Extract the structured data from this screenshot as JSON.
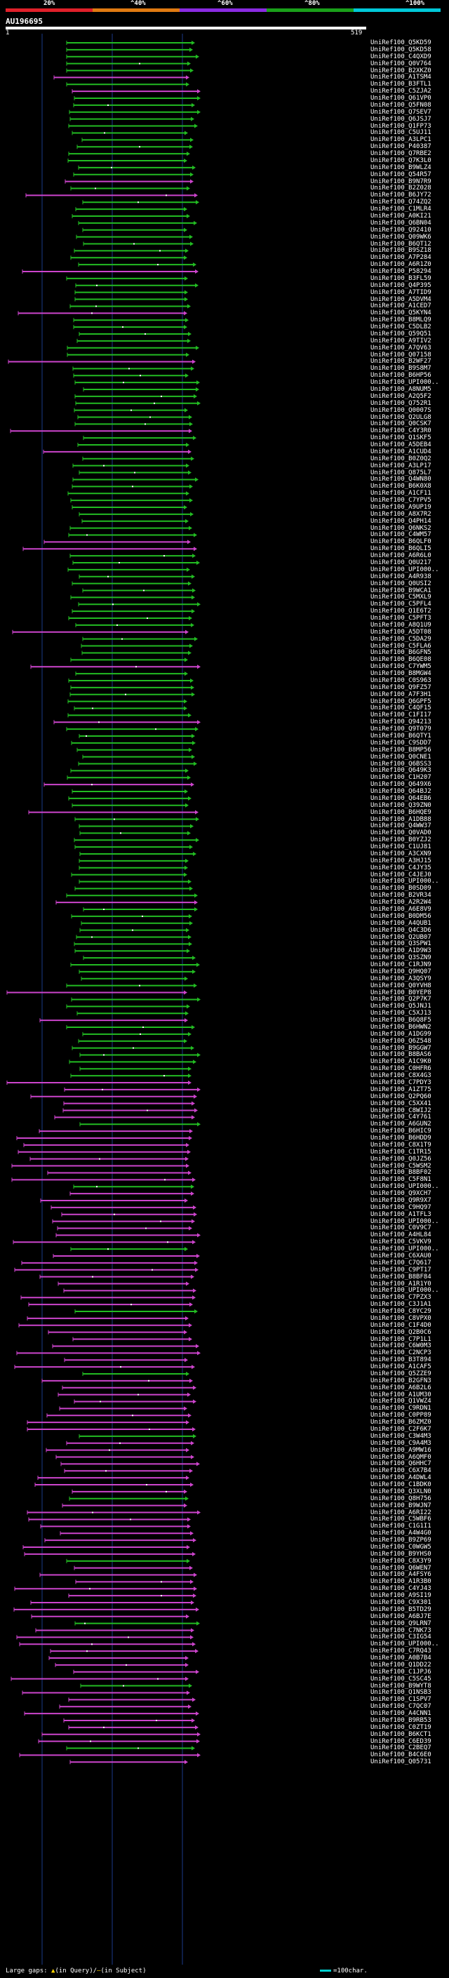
{
  "scale": {
    "ticks": [
      "20%",
      "^40%",
      "^60%",
      "^80%",
      "^100%"
    ],
    "colors": [
      "#e0202a",
      "#e07a12",
      "#8a2be2",
      "#1aa01a",
      "#00c8d8"
    ]
  },
  "query": {
    "name": "AU196695",
    "start": "1",
    "end": "519"
  },
  "legend": {
    "large_gaps": "Large gaps:",
    "marker": "▲",
    "query_text": "(in Query)/",
    "subject_marker": "–",
    "subject_text": "(in Subject)",
    "scale_text": "=100char."
  },
  "colors": {
    "green": "#22bb22",
    "magenta": "#cc44cc",
    "grid": "#1a3a8a"
  },
  "hits": [
    "UniRef100_Q5KD59",
    "UniRef100_Q5KD58",
    "UniRef100_C4QXD9",
    "UniRef100_Q0V764",
    "UniRef100_B2XKZ0",
    "UniRef100_A1TSM4",
    "UniRef100_B3FTL1",
    "UniRef100_C5ZJA2",
    "UniRef100_Q61VP0",
    "UniRef100_Q5FN08",
    "UniRef100_Q7SEV7",
    "UniRef100_Q6JSJ7",
    "UniRef100_Q1FP73",
    "UniRef100_C5UJ11",
    "UniRef100_A3LPC1",
    "UniRef100_P40387",
    "UniRef100_Q7RBE2",
    "UniRef100_Q7K3L0",
    "UniRef100_B9WLZ4",
    "UniRef100_Q54R57",
    "UniRef100_B9N7R9",
    "UniRef100_B2Z028",
    "UniRef100_B6JY72",
    "UniRef100_Q74ZQ2",
    "UniRef100_C1MLR4",
    "UniRef100_A0KI21",
    "UniRef100_Q6BN04",
    "UniRef100_Q92410",
    "UniRef100_Q09WK6",
    "UniRef100_B6QT12",
    "UniRef100_B9SZ18",
    "UniRef100_A7P284",
    "UniRef100_A6R1Z0",
    "UniRef100_P58294",
    "UniRef100_B3FL59",
    "UniRef100_Q4P395",
    "UniRef100_A7TID9",
    "UniRef100_A5DVM4",
    "UniRef100_A1CED7",
    "UniRef100_Q5KYN4",
    "UniRef100_B8MLQ9",
    "UniRef100_C5DLB2",
    "UniRef100_Q59Q51",
    "UniRef100_A9TIV2",
    "UniRef100_A7QV63",
    "UniRef100_Q07158",
    "UniRef100_B2WF27",
    "UniRef100_B9S8M7",
    "UniRef100_B6HP56",
    "UniRef100_UPI000..",
    "UniRef100_A8NUM5",
    "UniRef100_A2Q5F2",
    "UniRef100_Q752R1",
    "UniRef100_Q0007S",
    "UniRef100_Q2ULG8",
    "UniRef100_Q0CSK7",
    "UniRef100_C4Y3R0",
    "UniRef100_Q1SKF5",
    "UniRef100_A5DEB4",
    "UniRef100_A1CUD4",
    "UniRef100_B0Z0Q2",
    "UniRef100_A3LP17",
    "UniRef100_Q875L7",
    "UniRef100_Q4WN80",
    "UniRef100_B6K0X8",
    "UniRef100_A1CF11",
    "UniRef100_C7YPV5",
    "UniRef100_A9UP19",
    "UniRef100_A8X7R2",
    "UniRef100_Q4PH14",
    "UniRef100_Q6NKS2",
    "UniRef100_C4WM57",
    "UniRef100_B6QLF0",
    "UniRef100_B6QLI5",
    "UniRef100_A6R6L0",
    "UniRef100_Q0U217",
    "UniRef100_UPI000..",
    "UniRef100_A4R938",
    "UniRef100_Q0USI2",
    "UniRef100_B9WCA1",
    "UniRef100_C5MXL9",
    "UniRef100_C5PFL4",
    "UniRef100_Q1E6T2",
    "UniRef100_C5PFT3",
    "UniRef100_A8Q1U9",
    "UniRef100_A5DT08",
    "UniRef100_C5DA29",
    "UniRef100_C5FLA6",
    "UniRef100_B6GFN5",
    "UniRef100_B6QE08",
    "UniRef100_C7YWM5",
    "UniRef100_B8MGW4",
    "UniRef100_C0S963",
    "UniRef100_Q9FZ57",
    "UniRef100_A7F3H1",
    "UniRef100_Q6GPF5",
    "UniRef100_C4QF15",
    "UniRef100_C1FI17",
    "UniRef100_Q94213",
    "UniRef100_Q9T079",
    "UniRef100_B6QTY1",
    "UniRef100_C9SDD7",
    "UniRef100_B8MP56",
    "UniRef100_Q0CNE1",
    "UniRef100_Q6BSS3",
    "UniRef100_Q649K3",
    "UniRef100_C1H207",
    "UniRef100_Q649X6",
    "UniRef100_Q64BJ2",
    "UniRef100_Q64EB6",
    "UniRef100_Q39ZN0",
    "UniRef100_B6HQE9",
    "UniRef100_A1DB88",
    "UniRef100_Q4WW37",
    "UniRef100_Q0VAD0",
    "UniRef100_B0YZJ2",
    "UniRef100_C1UJ81",
    "UniRef100_A3CXN9",
    "UniRef100_A3HJ15",
    "UniRef100_C4JY35",
    "UniRef100_C4JEJ0",
    "UniRef100_UPI000..",
    "UniRef100_B0SD09",
    "UniRef100_B2VR34",
    "UniRef100_A2R2W4",
    "UniRef100_A6E8V9",
    "UniRef100_B0DM56",
    "UniRef100_A4QUB1",
    "UniRef100_Q4C3D6",
    "UniRef100_Q2UB07",
    "UniRef100_Q3SPW1",
    "UniRef100_A1D9W3",
    "UniRef100_Q3SZN9",
    "UniRef100_C1RJN9",
    "UniRef100_Q9HQ07",
    "UniRef100_A3QSY9",
    "UniRef100_Q0YVH8",
    "UniRef100_B0YEP8",
    "UniRef100_Q2P7K7",
    "UniRef100_Q5JNJ1",
    "UniRef100_C5XJ13",
    "UniRef100_B6Q8F5",
    "UniRef100_B6HWN2",
    "UniRef100_A1DG99",
    "UniRef100_Q6Z548",
    "UniRef100_B9GGW7",
    "UniRef100_B8BAS6",
    "UniRef100_A1C9K0",
    "UniRef100_C0HFR6",
    "UniRef100_C8X4G3",
    "UniRef100_C7PDY3",
    "UniRef100_A1ZT75",
    "UniRef100_Q2PQ60",
    "UniRef100_C5XX41",
    "UniRef100_C8WIJ2",
    "UniRef100_C4Y761",
    "UniRef100_A6GUN2",
    "UniRef100_B6HIC9",
    "UniRef100_B6HDD9",
    "UniRef100_C8X1T9",
    "UniRef100_C1TR15",
    "UniRef100_Q0JZ56",
    "UniRef100_C5WSM2",
    "UniRef100_B8BF02",
    "UniRef100_C5F8N1",
    "UniRef100_UPI000..",
    "UniRef100_Q9XCH7",
    "UniRef100_Q9R9X7",
    "UniRef100_C9HQ97",
    "UniRef100_A1TFL3",
    "UniRef100_UPI000..",
    "UniRef100_C0V9C7",
    "UniRef100_A4HL84",
    "UniRef100_C5VKV9",
    "UniRef100_UPI000..",
    "UniRef100_C6XAU0",
    "UniRef100_C7Q617",
    "UniRef100_C9PT17",
    "UniRef100_B8BF84",
    "UniRef100_A1R1Y0",
    "UniRef100_UPI000..",
    "UniRef100_C7PZX3",
    "UniRef100_C3J1A1",
    "UniRef100_C8YC29",
    "UniRef100_C8VPX0",
    "UniRef100_C1F4D0",
    "UniRef100_Q2B0C6",
    "UniRef100_C7P1L1",
    "UniRef100_C6W0M3",
    "UniRef100_C2NCP3",
    "UniRef100_B3T894",
    "UniRef100_A1CAF5",
    "UniRef100_Q5ZZE9",
    "UniRef100_B2GFN3",
    "UniRef100_A6B2L6",
    "UniRef100_A1UM30",
    "UniRef100_Q1VWZ4",
    "UniRef100_C9RDN1",
    "UniRef100_C0PP89",
    "UniRef100_B6ZMZ0",
    "UniRef100_C2F6K7",
    "UniRef100_C3W4M3",
    "UniRef100_C9A4M3",
    "UniRef100_A9MW16",
    "UniRef100_A6QMF0",
    "UniRef100_Q6HHC7",
    "UniRef100_C6X7B4",
    "UniRef100_A4DWL4",
    "UniRef100_C1BDK0",
    "UniRef100_Q3XLN0",
    "UniRef100_Q8H756",
    "UniRef100_B9WJN7",
    "UniRef100_A6RI22",
    "UniRef100_C5WBF6",
    "UniRef100_C1G1I1",
    "UniRef100_A4W4G0",
    "UniRef100_B9ZP69",
    "UniRef100_C0WGW5",
    "UniRef100_B9YHS0",
    "UniRef100_C8X3Y9",
    "UniRef100_Q6WEN7",
    "UniRef100_A4FSY6",
    "UniRef100_A1R3B0",
    "UniRef100_C4YJ43",
    "UniRef100_A9SI19",
    "UniRef100_C9X301",
    "UniRef100_B5TD29",
    "UniRef100_A6BJ7E",
    "UniRef100_Q9LRN7",
    "UniRef100_C7NK73",
    "UniRef100_C3IG54",
    "UniRef100_UPI000..",
    "UniRef100_C7RQ43",
    "UniRef100_A0B7B4",
    "UniRef100_Q1DD22",
    "UniRef100_C1JPJ6",
    "UniRef100_C5SC45",
    "UniRef100_B9WYT8",
    "UniRef100_Q1NSB3",
    "UniRef100_C1SPV7",
    "UniRef100_C7QC07",
    "UniRef100_A4CNN1",
    "UniRef100_B9RB53",
    "UniRef100_C0ZT19",
    "UniRef100_B6KCT1",
    "UniRef100_C6ED39",
    "UniRef100_C2BEQ7",
    "UniRef100_B4C6E0",
    "UniRef100_Q05731"
  ]
}
